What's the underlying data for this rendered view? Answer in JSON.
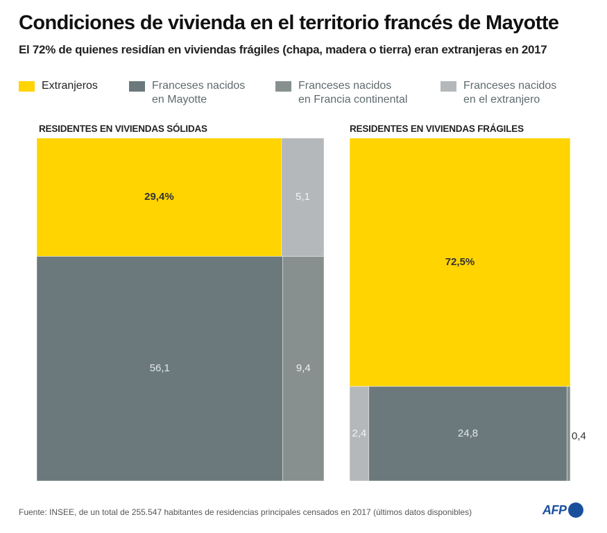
{
  "header": {
    "title": "Condiciones de vivienda en el territorio francés de Mayotte",
    "subtitle": "El 72% de quienes residían en viviendas frágiles (chapa, madera o tierra) eran extranjeras en 2017"
  },
  "legend": [
    {
      "label": "Extranjeros",
      "color": "#ffd400"
    },
    {
      "label": "Franceses nacidos\nen Mayotte",
      "color": "#6b797c"
    },
    {
      "label": "Franceses nacidos\nen Francia continental",
      "color": "#87908f"
    },
    {
      "label": "Franceses nacidos\nen el extranjero",
      "color": "#b4b8ba"
    }
  ],
  "chart_data": {
    "type": "treemap",
    "title": "Condiciones de vivienda en el territorio francés de Mayotte",
    "subtitle": "El 72% de quienes residían en viviendas frágiles (chapa, madera o tierra) eran extranjeras en 2017",
    "unit": "%",
    "categories": [
      "Extranjeros",
      "Franceses nacidos en Mayotte",
      "Franceses nacidos en Francia continental",
      "Franceses nacidos en el extranjero"
    ],
    "panels": [
      {
        "title": "RESIDENTES EN VIVIENDAS SÓLIDAS",
        "cells": [
          {
            "category": "Extranjeros",
            "value": 29.4,
            "label": "29,4%"
          },
          {
            "category": "Franceses nacidos en el extranjero",
            "value": 5.1,
            "label": "5,1"
          },
          {
            "category": "Franceses nacidos en Mayotte",
            "value": 56.1,
            "label": "56,1"
          },
          {
            "category": "Franceses nacidos en Francia continental",
            "value": 9.4,
            "label": "9,4"
          }
        ]
      },
      {
        "title": "RESIDENTES EN VIVIENDAS FRÁGILES",
        "cells": [
          {
            "category": "Extranjeros",
            "value": 72.5,
            "label": "72,5%"
          },
          {
            "category": "Franceses nacidos en el extranjero",
            "value": 2.4,
            "label": "2,4"
          },
          {
            "category": "Franceses nacidos en Mayotte",
            "value": 24.8,
            "label": "24,8"
          },
          {
            "category": "Franceses nacidos en Francia continental",
            "value": 0.4,
            "label": "0,4"
          }
        ]
      }
    ]
  },
  "footer": {
    "source": "Fuente: INSEE,  de un total de 255.547 habitantes de residencias principales censados en 2017 (últimos datos disponibles)",
    "logo": "AFP"
  }
}
